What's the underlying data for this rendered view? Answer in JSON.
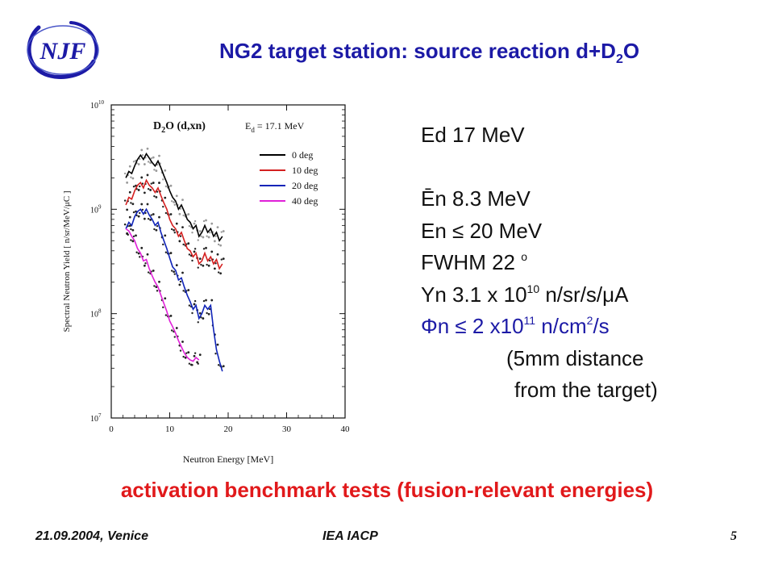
{
  "title": {
    "main": "NG2 target station: source reaction d+D",
    "sub": "2",
    "tail": "O"
  },
  "logo": {
    "text": "NJF"
  },
  "info": {
    "ed": "Ed 17  MeV",
    "en_mean": "Ēn       8.3 MeV",
    "en_max": "En   ≤ 20 MeV",
    "fwhm": "FWHM    22 ",
    "fwhm_unit": "o",
    "yn_a": "Yn    3.1 x 10",
    "yn_exp": "10",
    "yn_b": " n/sr/s/μA",
    "phi_a": "Φn ≤  2 x10",
    "phi_exp": "11",
    "phi_b": " n/cm",
    "phi_exp2": "2",
    "phi_c": "/s",
    "dist1": "(5mm distance",
    "dist2": "from the  target)"
  },
  "benchmark": "activation benchmark tests (fusion-relevant energies)",
  "footer": {
    "date": "21.09.2004, Venice",
    "middle": "IEA IACP",
    "page": "5"
  },
  "colors": {
    "title": "#1c1aa6",
    "benchmark": "#e1191b",
    "phi": "#1c1aa6"
  },
  "chart_data": {
    "type": "line",
    "title": "D2O (d,xn)   Ed = 17.1 MeV",
    "title_parts": {
      "react_a": "D",
      "react_sub": "2",
      "react_b": "O (d,xn)",
      "energy_a": "E",
      "energy_sub": "d",
      "energy_b": " = 17.1 MeV"
    },
    "xlabel": "Neutron Energy [MeV]",
    "ylabel": "Spectral Neutron Yield [ n/sr/MeV/μC ]",
    "xlim": [
      0,
      40
    ],
    "ylim": [
      10000000.0,
      10000000000.0
    ],
    "yscale": "log",
    "x_ticks": [
      "0",
      "10",
      "20",
      "30",
      "40"
    ],
    "y_ticks": [
      {
        "base": "10",
        "exp": "7",
        "value": 10000000.0
      },
      {
        "base": "10",
        "exp": "8",
        "value": 100000000.0
      },
      {
        "base": "10",
        "exp": "9",
        "value": 1000000000.0
      },
      {
        "base": "10",
        "exp": "10",
        "value": 10000000000.0
      }
    ],
    "legend_position": "top-right",
    "grid": false,
    "series": [
      {
        "name": "0 deg",
        "color": "#000000",
        "x": [
          2.5,
          3,
          3.5,
          4,
          4.5,
          5,
          5.5,
          6,
          6.5,
          7,
          7.5,
          8,
          8.5,
          9,
          9.5,
          10,
          10.5,
          11,
          11.5,
          12,
          12.5,
          13,
          13.5,
          14,
          14.5,
          15,
          15.5,
          16,
          16.5,
          17,
          17.5,
          18,
          18.5,
          19
        ],
        "y": [
          2000000000.0,
          2300000000.0,
          2200000000.0,
          2600000000.0,
          3000000000.0,
          3300000000.0,
          3000000000.0,
          3400000000.0,
          3100000000.0,
          2800000000.0,
          2600000000.0,
          2900000000.0,
          2500000000.0,
          2100000000.0,
          1800000000.0,
          1500000000.0,
          1300000000.0,
          1200000000.0,
          1000000000.0,
          1100000000.0,
          950000000.0,
          800000000.0,
          750000000.0,
          650000000.0,
          700000000.0,
          550000000.0,
          600000000.0,
          700000000.0,
          600000000.0,
          650000000.0,
          550000000.0,
          600000000.0,
          500000000.0,
          550000000.0
        ]
      },
      {
        "name": "10 deg",
        "color": "#d42020",
        "x": [
          2.5,
          3,
          3.5,
          4,
          4.5,
          5,
          5.5,
          6,
          6.5,
          7,
          7.5,
          8,
          8.5,
          9,
          9.5,
          10,
          10.5,
          11,
          11.5,
          12,
          12.5,
          13,
          13.5,
          14,
          14.5,
          15,
          15.5,
          16,
          16.5,
          17,
          17.5,
          18,
          18.5,
          19
        ],
        "y": [
          1100000000.0,
          1300000000.0,
          1250000000.0,
          1500000000.0,
          1700000000.0,
          1800000000.0,
          1600000000.0,
          1900000000.0,
          1700000000.0,
          1600000000.0,
          1450000000.0,
          1600000000.0,
          1350000000.0,
          1150000000.0,
          1000000000.0,
          800000000.0,
          700000000.0,
          650000000.0,
          550000000.0,
          600000000.0,
          500000000.0,
          420000000.0,
          400000000.0,
          350000000.0,
          380000000.0,
          300000000.0,
          320000000.0,
          380000000.0,
          320000000.0,
          350000000.0,
          300000000.0,
          330000000.0,
          270000000.0,
          300000000.0
        ]
      },
      {
        "name": "20 deg",
        "color": "#1024b8",
        "x": [
          2.5,
          3,
          3.5,
          4,
          4.5,
          5,
          5.5,
          6,
          6.5,
          7,
          7.5,
          8,
          8.5,
          9,
          9.5,
          10,
          10.5,
          11,
          11.5,
          12,
          12.5,
          13,
          13.5,
          14,
          14.5,
          15,
          15.5,
          16,
          16.5,
          17,
          17.5,
          18,
          18.5,
          19
        ],
        "y": [
          650000000.0,
          750000000.0,
          700000000.0,
          850000000.0,
          950000000.0,
          1000000000.0,
          900000000.0,
          1000000000.0,
          880000000.0,
          800000000.0,
          700000000.0,
          750000000.0,
          600000000.0,
          500000000.0,
          420000000.0,
          340000000.0,
          280000000.0,
          260000000.0,
          210000000.0,
          220000000.0,
          180000000.0,
          150000000.0,
          130000000.0,
          110000000.0,
          120000000.0,
          90000000.0,
          100000000.0,
          120000000.0,
          110000000.0,
          120000000.0,
          70000000.0,
          45000000.0,
          35000000.0,
          28000000.0
        ]
      },
      {
        "name": "40 deg",
        "color": "#e020d8",
        "x": [
          2.5,
          3,
          3.5,
          4,
          4.5,
          5,
          5.5,
          6,
          6.5,
          7,
          7.5,
          8,
          8.5,
          9,
          9.5,
          10,
          10.5,
          11,
          11.5,
          12,
          12.5,
          13,
          13.5,
          14,
          14.5,
          15
        ],
        "y": [
          650000000.0,
          620000000.0,
          550000000.0,
          500000000.0,
          420000000.0,
          380000000.0,
          320000000.0,
          330000000.0,
          270000000.0,
          230000000.0,
          200000000.0,
          180000000.0,
          150000000.0,
          125000000.0,
          105000000.0,
          85000000.0,
          75000000.0,
          65000000.0,
          55000000.0,
          48000000.0,
          42000000.0,
          38000000.0,
          36000000.0,
          35000000.0,
          38000000.0,
          36000000.0
        ]
      }
    ]
  }
}
